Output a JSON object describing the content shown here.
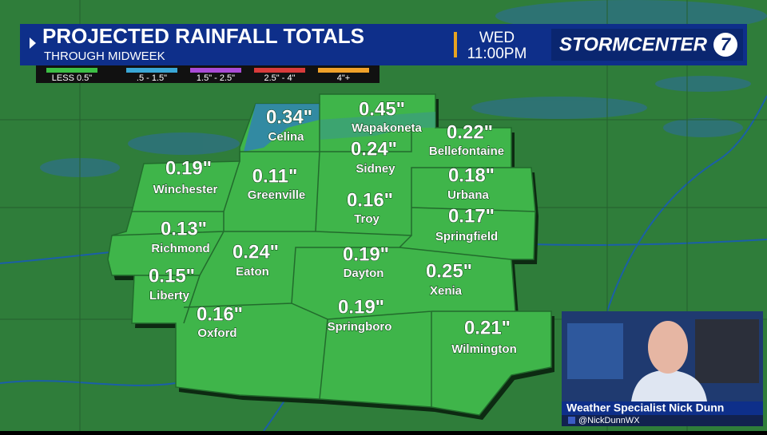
{
  "header": {
    "title": "PROJECTED RAINFALL TOTALS",
    "subtitle": "THROUGH MIDWEEK",
    "day": "WED",
    "time": "11:00PM",
    "logo": "STORMCENTER",
    "logo_number": "7"
  },
  "legend": [
    {
      "label": "LESS 0.5\"",
      "color": "#3cbf45"
    },
    {
      "label": ".5 - 1.5\"",
      "color": "#3aa7d6"
    },
    {
      "label": "1.5\" - 2.5\"",
      "color": "#a94bd6"
    },
    {
      "label": "2.5\" - 4\"",
      "color": "#d93b3b"
    },
    {
      "label": "4\"+",
      "color": "#f0a12a"
    }
  ],
  "locations": [
    {
      "amount": "0.34\"",
      "name": "Celina"
    },
    {
      "amount": "0.45\"",
      "name": "Wapakoneta"
    },
    {
      "amount": "0.22\"",
      "name": "Bellefontaine"
    },
    {
      "amount": "0.24\"",
      "name": "Sidney"
    },
    {
      "amount": "0.19\"",
      "name": "Winchester"
    },
    {
      "amount": "0.11\"",
      "name": "Greenville"
    },
    {
      "amount": "0.18\"",
      "name": "Urbana"
    },
    {
      "amount": "0.16\"",
      "name": "Troy"
    },
    {
      "amount": "0.17\"",
      "name": "Springfield"
    },
    {
      "amount": "0.13\"",
      "name": "Richmond"
    },
    {
      "amount": "0.24\"",
      "name": "Eaton"
    },
    {
      "amount": "0.19\"",
      "name": "Dayton"
    },
    {
      "amount": "0.25\"",
      "name": "Xenia"
    },
    {
      "amount": "0.15\"",
      "name": "Liberty"
    },
    {
      "amount": "0.16\"",
      "name": "Oxford"
    },
    {
      "amount": "0.19\"",
      "name": "Springboro"
    },
    {
      "amount": "0.21\"",
      "name": "Wilmington"
    }
  ],
  "presenter": {
    "name": "Weather Specialist Nick Dunn",
    "handle": "@NickDunnWX"
  }
}
